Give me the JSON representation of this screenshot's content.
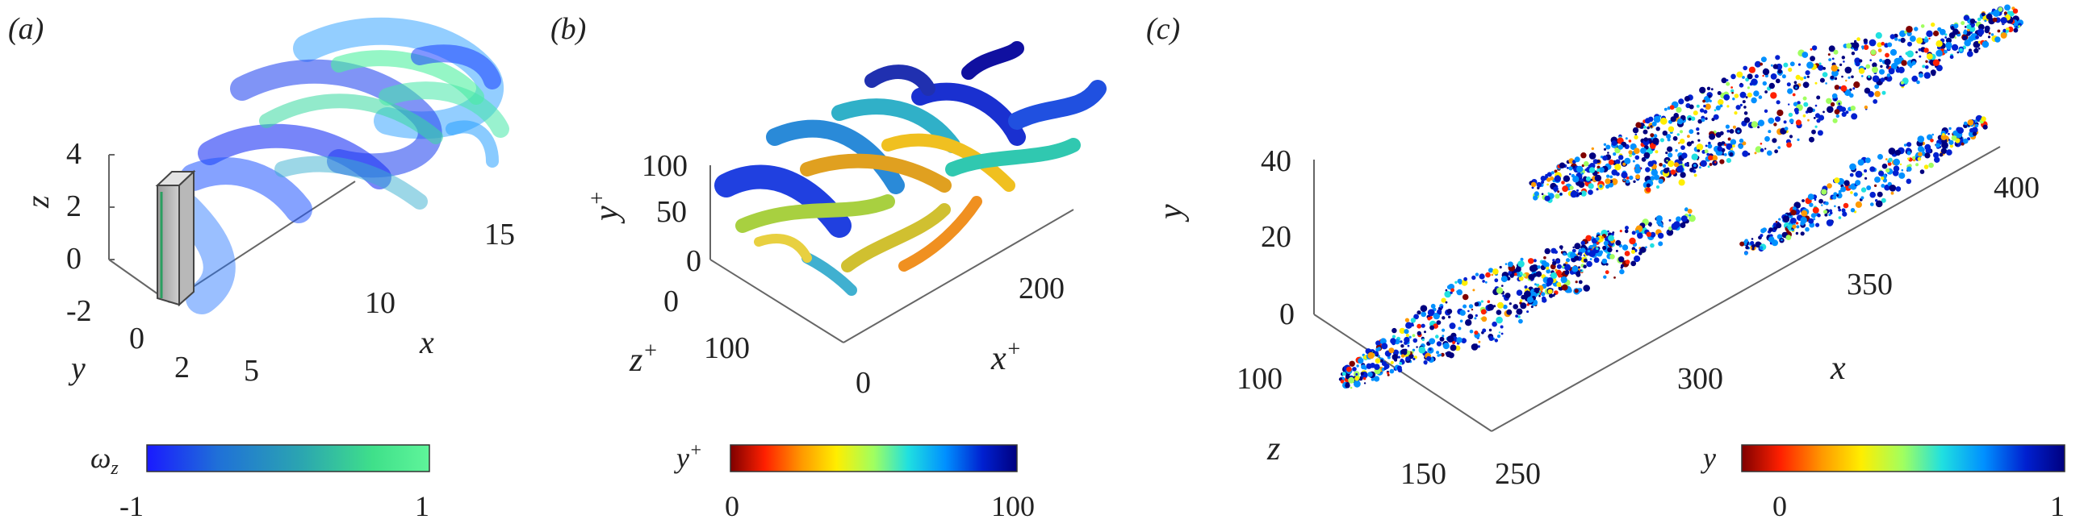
{
  "panels": [
    {
      "id": "a",
      "label": "(a)",
      "axes": {
        "x": {
          "label": "x",
          "ticks": [
            "5",
            "10",
            "15"
          ]
        },
        "y": {
          "label": "y",
          "ticks": [
            "-2",
            "0",
            "2"
          ]
        },
        "z": {
          "label": "z",
          "ticks": [
            "0",
            "2",
            "4"
          ]
        }
      },
      "colorbar": {
        "label": "ω",
        "label_sub": "z",
        "min": "-1",
        "max": "1",
        "colors": [
          "#1a1aff",
          "#1f70d8",
          "#2ba6b0",
          "#3fe08a",
          "#5ff59a"
        ]
      }
    },
    {
      "id": "b",
      "label": "(b)",
      "axes": {
        "x": {
          "label": "x",
          "label_sup": "+",
          "ticks": [
            "0",
            "200"
          ]
        },
        "y": {
          "label": "y",
          "label_sup": "+",
          "ticks": [
            "0",
            "50",
            "100"
          ]
        },
        "z": {
          "label": "z",
          "label_sup": "+",
          "ticks": [
            "0",
            "100"
          ]
        }
      },
      "colorbar": {
        "label": "y",
        "label_sup": "+",
        "min": "0",
        "max": "100",
        "colors": [
          "#7f0000",
          "#ff2000",
          "#ff9a00",
          "#ffee00",
          "#a0ff60",
          "#20e0e0",
          "#0090ff",
          "#0020d0",
          "#00007f"
        ]
      }
    },
    {
      "id": "c",
      "label": "(c)",
      "axes": {
        "x": {
          "label": "x",
          "ticks": [
            "250",
            "300",
            "350",
            "400"
          ]
        },
        "y": {
          "label": "y",
          "ticks": [
            "0",
            "20",
            "40"
          ]
        },
        "z": {
          "label": "z",
          "ticks": [
            "100",
            "150"
          ]
        }
      },
      "colorbar": {
        "label": "y",
        "min": "0",
        "max": "1",
        "colors": [
          "#7f0000",
          "#ff2000",
          "#ff9a00",
          "#ffee00",
          "#a0ff60",
          "#20e0e0",
          "#0090ff",
          "#0020d0",
          "#00007f"
        ]
      }
    }
  ]
}
